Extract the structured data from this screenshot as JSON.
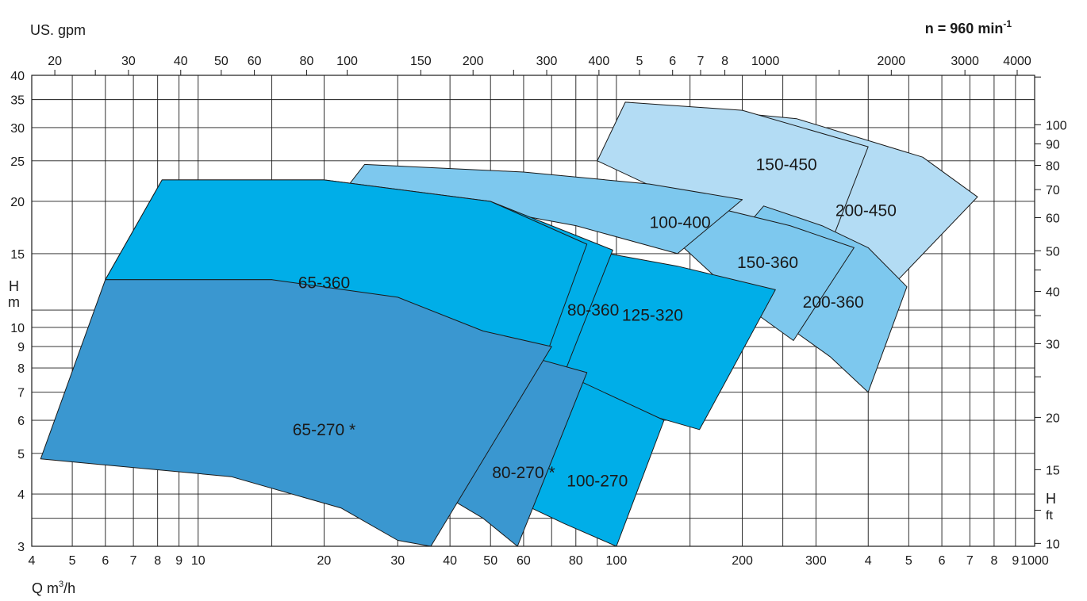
{
  "chart_data": {
    "type": "area",
    "title": "",
    "speed_label": "n = 960 min",
    "speed_superscript": "-1",
    "xlabel": "Q  m",
    "xlabel_sup": "3",
    "xlabel_tail": "/h",
    "top_axis_label": "US. gpm",
    "ylabel_left": [
      "H",
      "m"
    ],
    "ylabel_right": [
      "H",
      "ft"
    ],
    "scale": "log-log",
    "x_range": [
      4,
      1000
    ],
    "y_range": [
      3,
      40
    ],
    "x_ticks": [
      {
        "v": 4,
        "t": "4"
      },
      {
        "v": 5,
        "t": "5"
      },
      {
        "v": 6,
        "t": "6"
      },
      {
        "v": 7,
        "t": "7"
      },
      {
        "v": 8,
        "t": "8"
      },
      {
        "v": 9,
        "t": "9"
      },
      {
        "v": 10,
        "t": "10"
      },
      {
        "v": 20,
        "t": "20"
      },
      {
        "v": 30,
        "t": "30"
      },
      {
        "v": 40,
        "t": "40"
      },
      {
        "v": 50,
        "t": "50"
      },
      {
        "v": 60,
        "t": "60"
      },
      {
        "v": 80,
        "t": "80"
      },
      {
        "v": 100,
        "t": "100"
      },
      {
        "v": 200,
        "t": "200"
      },
      {
        "v": 300,
        "t": "300"
      },
      {
        "v": 400,
        "t": "4"
      },
      {
        "v": 500,
        "t": "5"
      },
      {
        "v": 600,
        "t": "6"
      },
      {
        "v": 700,
        "t": "7"
      },
      {
        "v": 800,
        "t": "8"
      },
      {
        "v": 900,
        "t": "9"
      },
      {
        "v": 1000,
        "t": "1000"
      }
    ],
    "x_grid": [
      5,
      6,
      7,
      8,
      9,
      10,
      15,
      20,
      30,
      40,
      50,
      60,
      70,
      80,
      90,
      100,
      150,
      200,
      250,
      300,
      400,
      500,
      600,
      700,
      800,
      900
    ],
    "y_ticks": [
      {
        "v": 3,
        "t": "3"
      },
      {
        "v": 4,
        "t": "4"
      },
      {
        "v": 5,
        "t": "5"
      },
      {
        "v": 6,
        "t": "6"
      },
      {
        "v": 7,
        "t": "7"
      },
      {
        "v": 8,
        "t": "8"
      },
      {
        "v": 9,
        "t": "9"
      },
      {
        "v": 10,
        "t": "10"
      },
      {
        "v": 15,
        "t": "15"
      },
      {
        "v": 20,
        "t": "20"
      },
      {
        "v": 25,
        "t": "25"
      },
      {
        "v": 30,
        "t": "30"
      },
      {
        "v": 35,
        "t": "35"
      },
      {
        "v": 40,
        "t": "40"
      }
    ],
    "y_grid": [
      3.5,
      4,
      5,
      6,
      7,
      8,
      9,
      10,
      11,
      15,
      20,
      25,
      30,
      35
    ],
    "gpm_ticks": [
      {
        "v": 20,
        "t": "20"
      },
      {
        "v": 25,
        "t": ""
      },
      {
        "v": 30,
        "t": "30"
      },
      {
        "v": 40,
        "t": "40"
      },
      {
        "v": 50,
        "t": "50"
      },
      {
        "v": 60,
        "t": "60"
      },
      {
        "v": 80,
        "t": "80"
      },
      {
        "v": 100,
        "t": "100"
      },
      {
        "v": 150,
        "t": "150"
      },
      {
        "v": 200,
        "t": "200"
      },
      {
        "v": 250,
        "t": ""
      },
      {
        "v": 300,
        "t": "300"
      },
      {
        "v": 400,
        "t": "400"
      },
      {
        "v": 500,
        "t": "5"
      },
      {
        "v": 600,
        "t": "6"
      },
      {
        "v": 700,
        "t": "7"
      },
      {
        "v": 800,
        "t": "8"
      },
      {
        "v": 1000,
        "t": "1000"
      },
      {
        "v": 1500,
        "t": ""
      },
      {
        "v": 2000,
        "t": "2000"
      },
      {
        "v": 3000,
        "t": "3000"
      },
      {
        "v": 4000,
        "t": "4000"
      }
    ],
    "ft_ticks": [
      {
        "v": 10,
        "t": "10"
      },
      {
        "v": 12,
        "t": ""
      },
      {
        "v": 15,
        "t": "15"
      },
      {
        "v": 20,
        "t": "20"
      },
      {
        "v": 25,
        "t": ""
      },
      {
        "v": 30,
        "t": "30"
      },
      {
        "v": 35,
        "t": ""
      },
      {
        "v": 40,
        "t": "40"
      },
      {
        "v": 45,
        "t": ""
      },
      {
        "v": 50,
        "t": "50"
      },
      {
        "v": 60,
        "t": "60"
      },
      {
        "v": 70,
        "t": "70"
      },
      {
        "v": 80,
        "t": "80"
      },
      {
        "v": 90,
        "t": "90"
      },
      {
        "v": 100,
        "t": "100"
      },
      {
        "v": 130,
        "t": ""
      }
    ],
    "series": [
      {
        "name": "200-450",
        "label_at": [
          395,
          19
        ],
        "fill": "#b3dcf4",
        "points": [
          [
            105,
            34.5
          ],
          [
            270,
            31.5
          ],
          [
            540,
            25.5
          ],
          [
            730,
            20.5
          ],
          [
            465,
            12.8
          ],
          [
            220,
            23.5
          ]
        ]
      },
      {
        "name": "150-450",
        "label_at": [
          255,
          24.5
        ],
        "fill": "#b3dcf4",
        "points": [
          [
            105,
            34.5
          ],
          [
            200,
            33
          ],
          [
            400,
            27
          ],
          [
            310,
            14
          ],
          [
            90,
            25
          ]
        ]
      },
      {
        "name": "200-360",
        "label_at": [
          330,
          11.5
        ],
        "fill": "#7dc8ee",
        "points": [
          [
            225,
            19.5
          ],
          [
            310,
            17.5
          ],
          [
            400,
            15.5
          ],
          [
            495,
            12.5
          ],
          [
            400,
            7
          ],
          [
            325,
            8.5
          ],
          [
            270,
            9.7
          ],
          [
            190,
            16
          ]
        ]
      },
      {
        "name": "150-360",
        "label_at": [
          230,
          14.3
        ],
        "fill": "#7dc8ee",
        "points": [
          [
            150,
            20
          ],
          [
            260,
            17.5
          ],
          [
            370,
            15.5
          ],
          [
            265,
            9.3
          ],
          [
            210,
            11
          ],
          [
            140,
            16
          ]
        ]
      },
      {
        "name": "100-400",
        "label_at": [
          142,
          17.8
        ],
        "fill": "#7dc8ee",
        "points": [
          [
            25,
            24.5
          ],
          [
            60,
            23.5
          ],
          [
            120,
            22
          ],
          [
            200,
            20.2
          ],
          [
            140,
            15
          ],
          [
            80,
            17.5
          ],
          [
            23,
            22
          ]
        ]
      },
      {
        "name": "125-320",
        "label_at": [
          122,
          10.7
        ],
        "fill": "#00aee8",
        "points": [
          [
            40,
            17
          ],
          [
            80,
            15.5
          ],
          [
            140,
            14
          ],
          [
            240,
            12.3
          ],
          [
            158,
            5.7
          ],
          [
            100,
            6.5
          ],
          [
            58,
            7.5
          ],
          [
            40,
            10
          ]
        ]
      },
      {
        "name": "80-360",
        "label_at": [
          88,
          11
        ],
        "fill": "#00aee8",
        "points": [
          [
            8.2,
            22.5
          ],
          [
            20,
            22.5
          ],
          [
            50,
            20
          ],
          [
            98,
            15.3
          ],
          [
            74,
            7.5
          ],
          [
            40,
            10
          ],
          [
            15,
            13
          ],
          [
            6,
            13
          ]
        ]
      },
      {
        "name": "65-360",
        "label_at": [
          20,
          12.8
        ],
        "fill": "#00aee8",
        "points": [
          [
            8.2,
            22.5
          ],
          [
            20,
            22.5
          ],
          [
            50,
            20
          ],
          [
            85,
            15.8
          ],
          [
            68,
            8.6
          ],
          [
            40,
            10
          ],
          [
            15,
            13
          ],
          [
            6,
            13
          ]
        ]
      },
      {
        "name": "100-270",
        "label_at": [
          90,
          4.3
        ],
        "fill": "#00aee8",
        "points": [
          [
            40,
            10
          ],
          [
            70,
            8
          ],
          [
            130,
            6
          ],
          [
            100,
            3
          ],
          [
            75,
            3.4
          ],
          [
            48,
            4.2
          ]
        ]
      },
      {
        "name": "80-270 *",
        "label_at": [
          60,
          4.5
        ],
        "fill": "#3a97d0",
        "points": [
          [
            38,
            9.8
          ],
          [
            55,
            8.8
          ],
          [
            85,
            7.8
          ],
          [
            58,
            3
          ],
          [
            48,
            3.5
          ],
          [
            40,
            3.9
          ]
        ]
      },
      {
        "name": "65-270 *",
        "label_at": [
          20,
          5.7
        ],
        "fill": "#3a97d0",
        "points": [
          [
            6,
            13
          ],
          [
            15,
            13
          ],
          [
            30,
            11.8
          ],
          [
            48,
            9.8
          ],
          [
            70,
            9
          ],
          [
            36,
            3
          ],
          [
            30,
            3.1
          ],
          [
            22,
            3.7
          ],
          [
            12,
            4.4
          ],
          [
            4.2,
            4.85
          ]
        ]
      }
    ]
  }
}
